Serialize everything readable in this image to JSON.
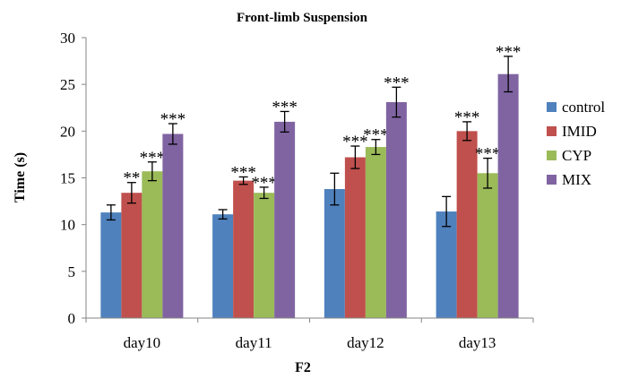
{
  "chart_data": {
    "type": "bar",
    "title": "Front-limb Suspension",
    "xlabel": "F2",
    "ylabel": "Time (s)",
    "ylim": [
      0,
      30
    ],
    "yticks": [
      0,
      5,
      10,
      15,
      20,
      25,
      30
    ],
    "categories": [
      "day10",
      "day11",
      "day12",
      "day13"
    ],
    "legend_position": "right",
    "grid": false,
    "series": [
      {
        "name": "control",
        "color": "#4f81bd",
        "values": [
          11.3,
          11.1,
          13.8,
          11.4
        ],
        "errors": [
          0.8,
          0.5,
          1.7,
          1.6
        ],
        "significance": [
          "",
          "",
          "",
          ""
        ]
      },
      {
        "name": "IMID",
        "color": "#c0504d",
        "values": [
          13.4,
          14.7,
          17.2,
          20.0
        ],
        "errors": [
          1.1,
          0.4,
          1.2,
          1.0
        ],
        "significance": [
          "**",
          "***",
          "***",
          "***"
        ]
      },
      {
        "name": "CYP",
        "color": "#9bbb59",
        "values": [
          15.7,
          13.4,
          18.3,
          15.5
        ],
        "errors": [
          1.0,
          0.6,
          0.8,
          1.6
        ],
        "significance": [
          "***",
          "***",
          "***",
          "***"
        ]
      },
      {
        "name": "MIX",
        "color": "#8064a2",
        "values": [
          19.7,
          21.0,
          23.1,
          26.1
        ],
        "errors": [
          1.1,
          1.1,
          1.6,
          1.9
        ],
        "significance": [
          "***",
          "***",
          "***",
          "***"
        ]
      }
    ]
  }
}
